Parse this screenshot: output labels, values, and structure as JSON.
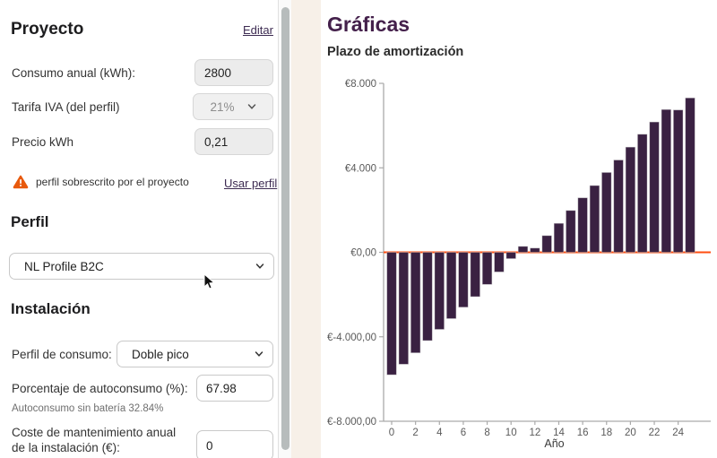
{
  "sidebar": {
    "project": {
      "title": "Proyecto",
      "edit_link": "Editar",
      "consumo_label": "Consumo anual (kWh):",
      "consumo_value": "2800",
      "tarifa_label": "Tarifa IVA (del perfil)",
      "tarifa_value": "21%",
      "precio_label": "Precio kWh",
      "precio_value": "0,21",
      "warning_text": "perfil sobrescrito por el proyecto",
      "use_profile_link": "Usar perfil"
    },
    "profile": {
      "title": "Perfil",
      "selected": "NL Profile B2C"
    },
    "installation": {
      "title": "Instalación",
      "consumption_profile_label": "Perfil de consumo:",
      "consumption_profile_value": "Doble pico",
      "autoconsumo_label": "Porcentaje de autoconsumo (%):",
      "autoconsumo_value": "67.98",
      "autoconsumo_hint": "Autoconsumo sin batería 32.84%",
      "maintenance_label": "Coste de mantenimiento anual de la instalación (€):",
      "maintenance_value": "0"
    }
  },
  "main": {
    "title": "Gráficas",
    "chart_title": "Plazo de amortización"
  },
  "icons": {
    "warning": "warning-triangle-icon",
    "chevron": "chevron-down-icon",
    "cursor": "mouse-cursor-icon"
  },
  "colors": {
    "accent_purple": "#44204b",
    "bar": "#3a2142",
    "zero_line": "#ff4e11",
    "warning_orange": "#e8590c",
    "link": "#3d2b52",
    "axis": "#aaaaaa",
    "tick_text": "#5a5a5a",
    "gap_strip": "#f7f0e8"
  },
  "chart_data": {
    "type": "bar",
    "title": "Plazo de amortización",
    "xlabel": "Año",
    "ylabel": "",
    "x": [
      0,
      1,
      2,
      3,
      4,
      5,
      6,
      7,
      8,
      9,
      10,
      11,
      12,
      13,
      14,
      15,
      16,
      17,
      18,
      19,
      20,
      21,
      22,
      23,
      24,
      25
    ],
    "values": [
      -5800,
      -5300,
      -4760,
      -4180,
      -3650,
      -3140,
      -2600,
      -2100,
      -1520,
      -930,
      -300,
      280,
      200,
      790,
      1370,
      1980,
      2580,
      3160,
      3780,
      4370,
      4980,
      5590,
      6170,
      6760,
      6740,
      7310
    ],
    "ylim": [
      -8000,
      8000
    ],
    "y_ticks": [
      {
        "v": 8000,
        "label": "€8.000"
      },
      {
        "v": 4000,
        "label": "€4.000"
      },
      {
        "v": 0,
        "label": "€0,00"
      },
      {
        "v": -4000,
        "label": "€-4.000,00"
      },
      {
        "v": -8000,
        "label": "€-8.000,00"
      }
    ],
    "x_tick_step": 2,
    "grid": false,
    "legend": "none",
    "bar_color": "#3a2142",
    "zero_line_color": "#ff4e11",
    "axis_color": "#aaaaaa"
  }
}
